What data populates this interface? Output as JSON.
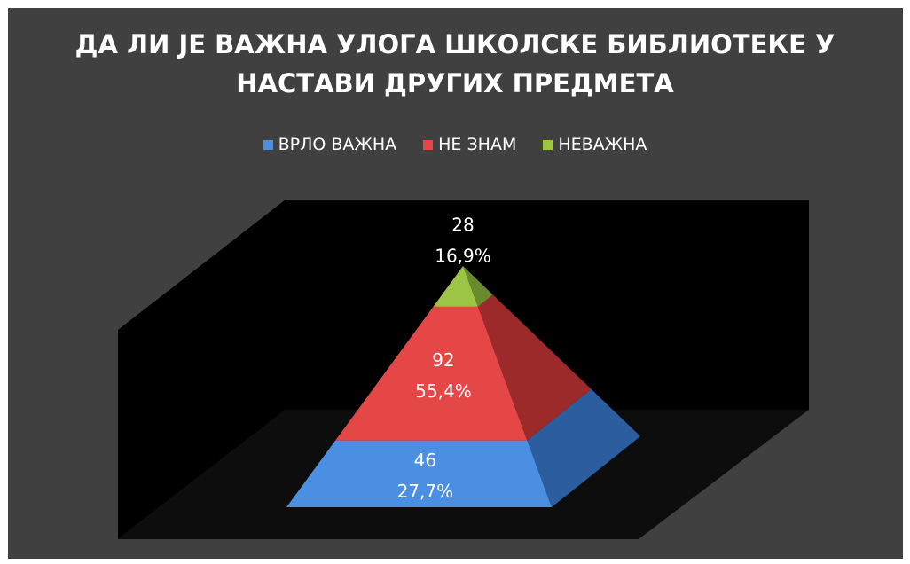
{
  "chart_data": {
    "type": "pyramid",
    "title": "ДА ЛИ ЈЕ ВАЖНА УЛОГА ШКОЛСКЕ БИБЛИОТЕКЕ У НАСТАВИ ДРУГИХ ПРЕДМЕТА",
    "legend_position": "top",
    "series": [
      {
        "name": "ВРЛО ВАЖНА",
        "color": "#4a8fe2",
        "side_color": "#2c5d9e",
        "values": [
          46
        ],
        "percentages": [
          27.7
        ],
        "percentage_labels": [
          "27,7%"
        ]
      },
      {
        "name": "НЕ ЗНАМ",
        "color": "#e54646",
        "side_color": "#9c2a2a",
        "values": [
          92
        ],
        "percentages": [
          55.4
        ],
        "percentage_labels": [
          "55,4%"
        ]
      },
      {
        "name": "НЕВАЖНА",
        "color": "#9cc545",
        "side_color": "#6a8a2e",
        "values": [
          28
        ],
        "percentages": [
          16.9
        ],
        "percentage_labels": [
          "16,9%"
        ]
      }
    ]
  }
}
